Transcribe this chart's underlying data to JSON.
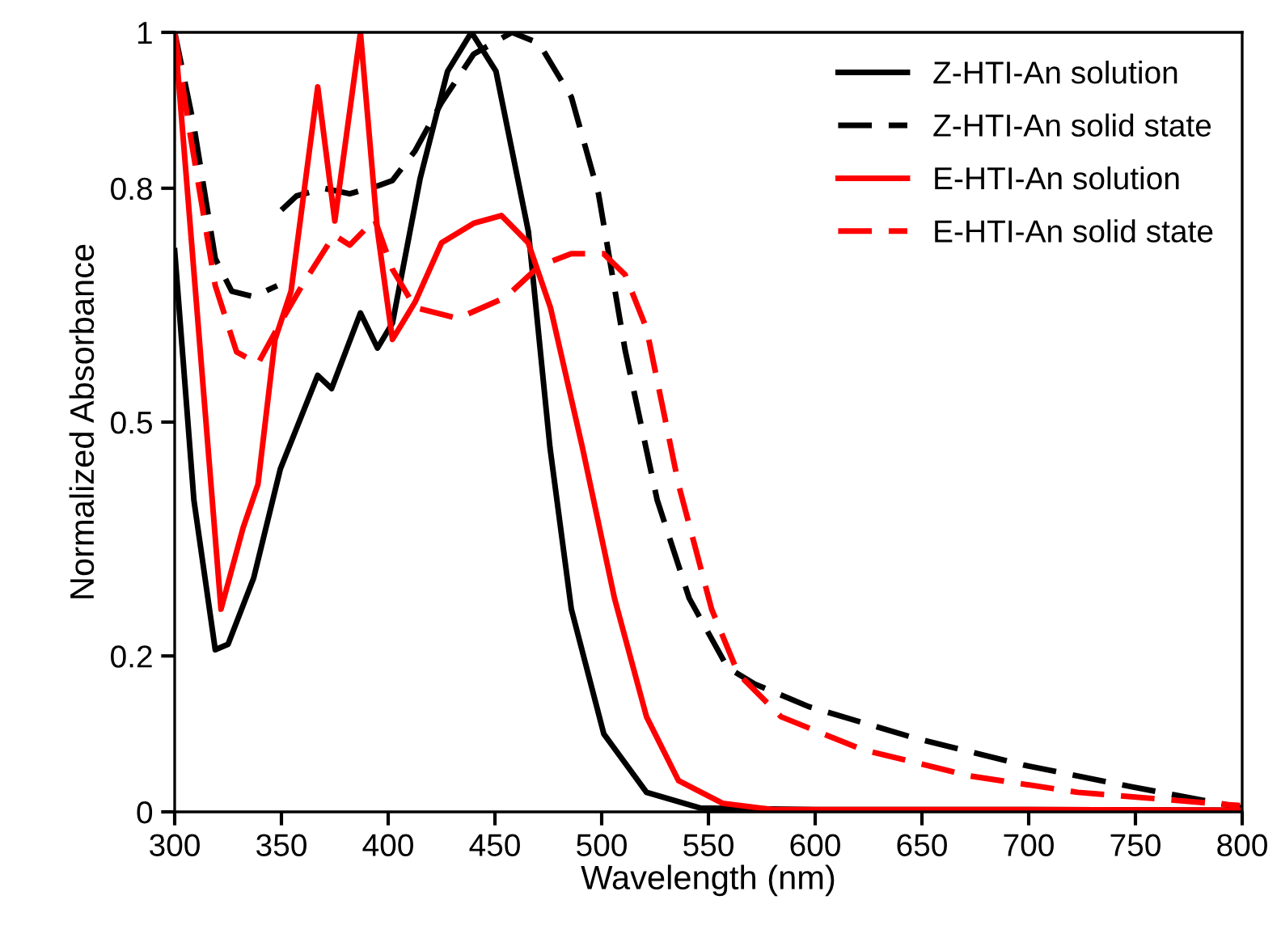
{
  "chart_data": {
    "type": "line",
    "xlabel": "Wavelength (nm)",
    "ylabel": "Normalized Absorbance",
    "xlim": [
      300,
      800
    ],
    "xticks": [
      300,
      350,
      400,
      450,
      500,
      550,
      600,
      650,
      700,
      750,
      800
    ],
    "ylim": [
      0,
      1
    ],
    "yticks": [
      0,
      0.2,
      0.5,
      0.8,
      1
    ],
    "grid": false,
    "legend": "top right",
    "marker": "none",
    "series": [
      {
        "name": "Z-HTI-An solution",
        "color": "#000000",
        "line_style": "solid",
        "x": [
          300,
          309,
          319,
          325,
          337,
          349.5,
          367,
          373.5,
          387,
          395,
          402,
          415,
          427.8,
          439,
          450.5,
          465.7,
          475.8,
          485.8,
          501,
          521,
          546,
          600,
          700,
          800
        ],
        "values": [
          0.72,
          0.4,
          0.208,
          0.215,
          0.3,
          0.44,
          0.56,
          0.543,
          0.64,
          0.595,
          0.627,
          0.813,
          0.95,
          1.0,
          0.95,
          0.744,
          0.467,
          0.26,
          0.1,
          0.025,
          0.005,
          0.003,
          0.003,
          0.002
        ]
      },
      {
        "name": "Z-HTI-An solid state",
        "color": "#000000",
        "line_style": "dashed",
        "x": [
          300,
          309,
          319,
          326.7,
          337,
          348,
          349,
          350,
          357,
          369.7,
          382,
          395,
          402,
          412.6,
          425,
          440,
          458,
          470.6,
          485.8,
          498.5,
          511,
          526,
          541,
          559,
          571.7,
          597,
          647.5,
          697.7,
          748.5,
          795,
          800
        ],
        "values": [
          1.0,
          0.88,
          0.71,
          0.668,
          0.661,
          0.675,
          null,
          0.772,
          0.79,
          0.8,
          0.793,
          0.803,
          0.81,
          0.848,
          0.91,
          0.972,
          1.0,
          0.986,
          0.917,
          0.793,
          0.592,
          0.4,
          0.274,
          0.185,
          0.164,
          0.135,
          0.094,
          0.06,
          0.032,
          0.008,
          0.005
        ]
      },
      {
        "name": "E-HTI-An solution",
        "color": "#ff0000",
        "line_style": "solid",
        "x": [
          300,
          321.7,
          332,
          339,
          347,
          354.5,
          367,
          375,
          387,
          395,
          402,
          412.6,
          425,
          440,
          453,
          465.6,
          476,
          491,
          506,
          521,
          536,
          556.6,
          580,
          700,
          800
        ],
        "values": [
          1.0,
          0.26,
          0.364,
          0.42,
          0.606,
          0.668,
          0.93,
          0.758,
          1.0,
          0.745,
          0.606,
          0.654,
          0.73,
          0.755,
          0.765,
          0.73,
          0.647,
          0.467,
          0.274,
          0.122,
          0.04,
          0.011,
          0.003,
          0.003,
          0.002
        ]
      },
      {
        "name": "E-HTI-An solid state",
        "color": "#ff0000",
        "line_style": "dashed",
        "x": [
          300,
          306.6,
          319,
          329,
          339,
          348,
          359.6,
          374.7,
          382,
          393.7,
          402,
          412.6,
          432.6,
          455,
          470.6,
          485.7,
          500.9,
          511,
          521,
          536,
          551.5,
          564,
          584,
          622,
          672.7,
          723,
          799
        ],
        "values": [
          1.0,
          0.88,
          0.675,
          0.59,
          0.575,
          0.62,
          0.675,
          0.74,
          0.727,
          0.76,
          0.696,
          0.647,
          0.633,
          0.66,
          0.7,
          0.716,
          0.716,
          0.689,
          0.62,
          0.42,
          0.26,
          0.177,
          0.122,
          0.08,
          0.046,
          0.025,
          0.008
        ]
      }
    ]
  }
}
